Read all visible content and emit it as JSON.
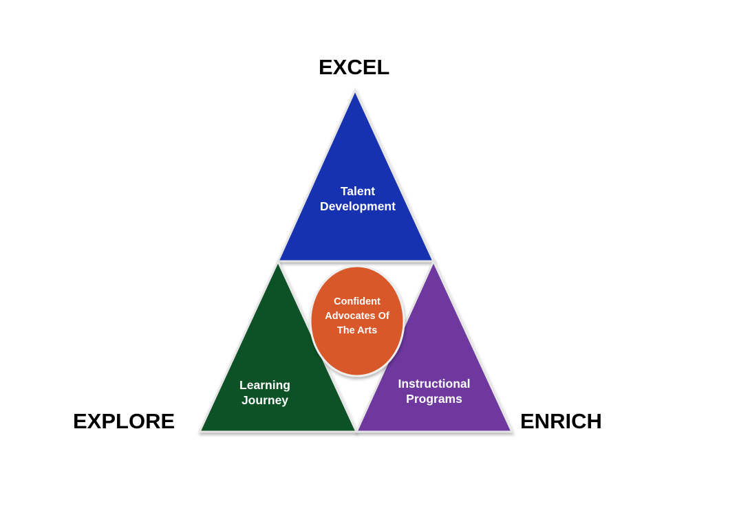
{
  "labels": {
    "top": "EXCEL",
    "left": "EXPLORE",
    "right": "ENRICH"
  },
  "sections": {
    "top": {
      "line1": "Talent",
      "line2": "Development",
      "color": "#1730b0"
    },
    "left": {
      "line1": "Learning",
      "line2": "Journey",
      "color": "#0b5128"
    },
    "right": {
      "line1": "Instructional",
      "line2": "Programs",
      "color": "#6e399f"
    },
    "center": {
      "line1": "Confident",
      "line2": "Advocates Of",
      "line3": "The Arts",
      "color": "#d9592b"
    }
  }
}
